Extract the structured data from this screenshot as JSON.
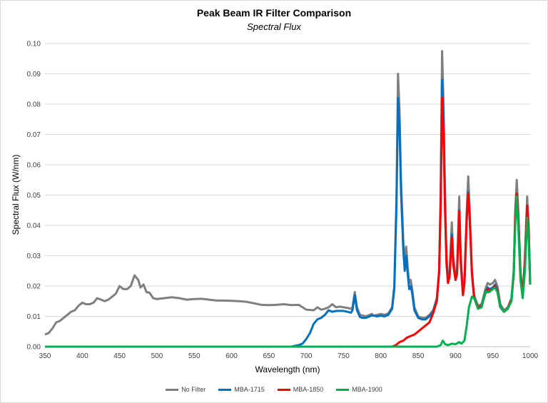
{
  "chart_data": {
    "type": "line",
    "title": "Peak Beam IR Filter Comparison",
    "subtitle": "Spectral Flux",
    "xlabel": "Wavelength (nm)",
    "ylabel": "Spectral Flux (W/nm)",
    "xlim": [
      350,
      1000
    ],
    "ylim": [
      0,
      0.1
    ],
    "xticks": [
      "350",
      "400",
      "450",
      "500",
      "550",
      "600",
      "650",
      "700",
      "750",
      "800",
      "850",
      "900",
      "950",
      "1000"
    ],
    "yticks": [
      "0.00",
      "0.01",
      "0.02",
      "0.03",
      "0.04",
      "0.05",
      "0.06",
      "0.07",
      "0.08",
      "0.09",
      "0.10"
    ],
    "grid": "horizontal",
    "legend": "bottom",
    "series": [
      {
        "name": "No Filter",
        "color": "#7f7f7f",
        "x": [
          350,
          355,
          360,
          365,
          370,
          375,
          380,
          385,
          390,
          395,
          400,
          405,
          410,
          415,
          420,
          425,
          430,
          435,
          440,
          445,
          450,
          455,
          460,
          465,
          470,
          475,
          478,
          482,
          486,
          490,
          495,
          500,
          510,
          520,
          530,
          540,
          550,
          560,
          570,
          580,
          590,
          600,
          610,
          620,
          630,
          640,
          650,
          660,
          670,
          680,
          690,
          700,
          710,
          715,
          720,
          725,
          730,
          735,
          740,
          745,
          750,
          755,
          760,
          762,
          765,
          768,
          772,
          780,
          788,
          790,
          795,
          800,
          805,
          810,
          815,
          818,
          821,
          823,
          825,
          827,
          830,
          832,
          834,
          836,
          838,
          840,
          842,
          845,
          850,
          855,
          860,
          865,
          870,
          875,
          878,
          880,
          882,
          884,
          886,
          888,
          890,
          892,
          895,
          897,
          900,
          902,
          905,
          907,
          910,
          912,
          915,
          917,
          919,
          922,
          925,
          930,
          935,
          940,
          943,
          946,
          950,
          953,
          956,
          960,
          965,
          970,
          975,
          978,
          980,
          982,
          984,
          987,
          990,
          993,
          996,
          998,
          1000
        ],
        "y": [
          0.004,
          0.0045,
          0.006,
          0.008,
          0.0085,
          0.0095,
          0.0105,
          0.0115,
          0.012,
          0.0135,
          0.0145,
          0.014,
          0.014,
          0.0145,
          0.016,
          0.0155,
          0.015,
          0.0155,
          0.0165,
          0.0175,
          0.02,
          0.019,
          0.019,
          0.02,
          0.0235,
          0.022,
          0.0195,
          0.0205,
          0.018,
          0.0178,
          0.016,
          0.0157,
          0.016,
          0.0163,
          0.016,
          0.0155,
          0.0157,
          0.0158,
          0.0155,
          0.0152,
          0.0152,
          0.0151,
          0.015,
          0.0148,
          0.0143,
          0.0138,
          0.0137,
          0.0138,
          0.014,
          0.0137,
          0.0138,
          0.0122,
          0.012,
          0.013,
          0.0122,
          0.0125,
          0.013,
          0.014,
          0.013,
          0.0132,
          0.013,
          0.0128,
          0.0125,
          0.013,
          0.018,
          0.013,
          0.0105,
          0.01,
          0.0108,
          0.0102,
          0.0105,
          0.0108,
          0.0105,
          0.011,
          0.013,
          0.02,
          0.05,
          0.09,
          0.078,
          0.055,
          0.035,
          0.027,
          0.033,
          0.026,
          0.021,
          0.022,
          0.019,
          0.013,
          0.01,
          0.0095,
          0.0095,
          0.0105,
          0.012,
          0.016,
          0.025,
          0.05,
          0.0975,
          0.08,
          0.05,
          0.03,
          0.022,
          0.024,
          0.041,
          0.03,
          0.023,
          0.025,
          0.0495,
          0.03,
          0.018,
          0.022,
          0.045,
          0.0562,
          0.045,
          0.025,
          0.017,
          0.0135,
          0.014,
          0.019,
          0.021,
          0.0205,
          0.021,
          0.022,
          0.02,
          0.014,
          0.012,
          0.013,
          0.016,
          0.025,
          0.045,
          0.055,
          0.045,
          0.025,
          0.017,
          0.03,
          0.0495,
          0.04,
          0.021
        ]
      },
      {
        "name": "MBA-1715",
        "color": "#0070c0",
        "x": [
          350,
          680,
          690,
          695,
          700,
          705,
          710,
          715,
          720,
          725,
          730,
          735,
          740,
          745,
          750,
          755,
          760,
          762,
          765,
          768,
          772,
          775,
          780,
          788,
          795,
          800,
          805,
          810,
          815,
          818,
          821,
          823,
          825,
          827,
          830,
          832,
          834,
          836,
          838,
          840,
          842,
          845,
          850,
          855,
          860,
          865,
          870,
          875,
          878,
          880,
          882,
          884,
          886,
          888,
          890,
          892,
          895,
          897,
          900,
          902,
          905,
          907,
          910,
          912,
          915,
          917,
          919,
          922,
          925,
          930,
          935,
          940,
          943,
          946,
          950,
          953,
          956,
          960,
          965,
          970,
          975,
          978,
          980,
          982,
          984,
          987,
          990,
          993,
          996,
          998,
          1000
        ],
        "y": [
          0,
          0,
          0.0005,
          0.001,
          0.0025,
          0.0045,
          0.0075,
          0.009,
          0.0095,
          0.0105,
          0.012,
          0.0115,
          0.0118,
          0.0118,
          0.0118,
          0.0115,
          0.0112,
          0.012,
          0.017,
          0.012,
          0.0098,
          0.0095,
          0.0095,
          0.0103,
          0.01,
          0.0102,
          0.01,
          0.0105,
          0.0125,
          0.019,
          0.047,
          0.082,
          0.072,
          0.051,
          0.032,
          0.025,
          0.03,
          0.024,
          0.019,
          0.02,
          0.0175,
          0.012,
          0.0095,
          0.009,
          0.009,
          0.01,
          0.0115,
          0.0155,
          0.024,
          0.047,
          0.088,
          0.075,
          0.047,
          0.028,
          0.021,
          0.023,
          0.037,
          0.028,
          0.022,
          0.024,
          0.045,
          0.028,
          0.017,
          0.021,
          0.042,
          0.051,
          0.042,
          0.024,
          0.016,
          0.013,
          0.0135,
          0.018,
          0.0195,
          0.019,
          0.0195,
          0.0205,
          0.019,
          0.013,
          0.0115,
          0.0125,
          0.0155,
          0.024,
          0.043,
          0.0505,
          0.043,
          0.024,
          0.0165,
          0.028,
          0.0465,
          0.038,
          0.0205
        ]
      },
      {
        "name": "MBA-1850",
        "color": "#ff0000",
        "x": [
          350,
          815,
          820,
          825,
          830,
          835,
          840,
          845,
          850,
          855,
          860,
          865,
          870,
          875,
          878,
          880,
          882,
          884,
          886,
          888,
          890,
          892,
          895,
          897,
          900,
          902,
          905,
          907,
          910,
          912,
          915,
          917,
          919,
          922,
          925,
          930,
          935,
          940,
          943,
          946,
          950,
          953,
          956,
          960,
          965,
          970,
          975,
          978,
          980,
          982,
          984,
          987,
          990,
          993,
          996,
          998,
          1000
        ],
        "y": [
          0,
          0,
          0.0005,
          0.0015,
          0.002,
          0.003,
          0.0035,
          0.004,
          0.005,
          0.006,
          0.007,
          0.008,
          0.011,
          0.015,
          0.025,
          0.045,
          0.082,
          0.07,
          0.045,
          0.027,
          0.021,
          0.023,
          0.036,
          0.027,
          0.022,
          0.024,
          0.0445,
          0.028,
          0.017,
          0.021,
          0.042,
          0.0505,
          0.042,
          0.024,
          0.016,
          0.013,
          0.0133,
          0.0175,
          0.019,
          0.0185,
          0.019,
          0.02,
          0.0185,
          0.013,
          0.0115,
          0.0125,
          0.0155,
          0.024,
          0.043,
          0.0505,
          0.043,
          0.024,
          0.0165,
          0.028,
          0.0465,
          0.038,
          0.0205
        ]
      },
      {
        "name": "MBA-1900",
        "color": "#00b050",
        "x": [
          350,
          875,
          880,
          883,
          886,
          890,
          895,
          900,
          905,
          908,
          912,
          915,
          918,
          922,
          925,
          930,
          935,
          940,
          945,
          950,
          953,
          956,
          960,
          965,
          970,
          975,
          978,
          980,
          982,
          984,
          987,
          990,
          993,
          996,
          998,
          1000
        ],
        "y": [
          0,
          0,
          0.0005,
          0.002,
          0.0008,
          0.0005,
          0.001,
          0.0008,
          0.0015,
          0.001,
          0.002,
          0.007,
          0.013,
          0.0165,
          0.016,
          0.0125,
          0.013,
          0.018,
          0.018,
          0.019,
          0.0195,
          0.018,
          0.013,
          0.0115,
          0.0125,
          0.015,
          0.025,
          0.04,
          0.0495,
          0.04,
          0.022,
          0.016,
          0.025,
          0.0425,
          0.035,
          0.0205
        ]
      }
    ]
  }
}
